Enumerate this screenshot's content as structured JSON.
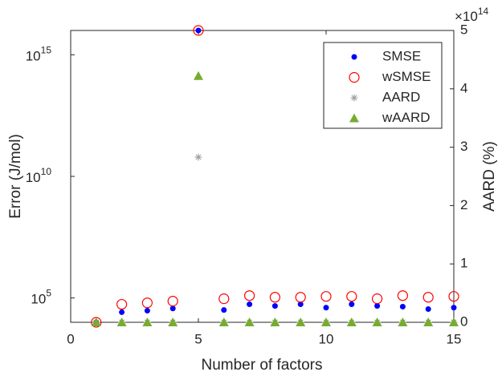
{
  "chart_data": {
    "type": "scatter",
    "xlabel": "Number of factors",
    "ylabel": "Error (J/mol)",
    "y2label": "AARD (%)",
    "y2_multiplier": {
      "label": "×10",
      "exponent": "14"
    },
    "xlim": [
      0,
      15
    ],
    "xticks": [
      0,
      5,
      10,
      15
    ],
    "yscale": "log",
    "ylim": [
      10000,
      10000000000000000
    ],
    "yticks": [
      {
        "value": 100000,
        "label": "10",
        "exponent": "5"
      },
      {
        "value": 10000000000,
        "label": "10",
        "exponent": "10"
      },
      {
        "value": 1000000000000000,
        "label": "10",
        "exponent": "15"
      }
    ],
    "y2lim": [
      0,
      500000000000000
    ],
    "y2ticks": [
      {
        "value": 0,
        "label": "0"
      },
      {
        "value": 100000000000000,
        "label": "1"
      },
      {
        "value": 200000000000000,
        "label": "2"
      },
      {
        "value": 300000000000000,
        "label": "3"
      },
      {
        "value": 400000000000000,
        "label": "4"
      },
      {
        "value": 500000000000000,
        "label": "5"
      }
    ],
    "x": [
      1,
      2,
      3,
      4,
      5,
      6,
      7,
      8,
      9,
      10,
      11,
      12,
      13,
      14,
      15
    ],
    "legend": "upper right",
    "series": [
      {
        "name": "SMSE",
        "color": "#0000ff",
        "marker": "dot",
        "axis": "y",
        "values": [
          10000,
          26000,
          30000,
          37000,
          10000000000000000,
          32000,
          55000,
          47000,
          55000,
          40000,
          55000,
          47000,
          44000,
          35000,
          40000
        ]
      },
      {
        "name": "wSMSE",
        "color": "#ff0000",
        "marker": "circle",
        "axis": "y",
        "values": [
          10000,
          55000,
          63000,
          74000,
          10000000000000000,
          93000,
          125000,
          107000,
          107000,
          116000,
          116000,
          93000,
          125000,
          107000,
          116000
        ]
      },
      {
        "name": "AARD",
        "color": "#999999",
        "marker": "star",
        "axis": "y2",
        "values": [
          0,
          0,
          0,
          0,
          283000000000000,
          0,
          0,
          0,
          0,
          0,
          0,
          0,
          0,
          0,
          0
        ]
      },
      {
        "name": "wAARD",
        "color": "#77ac30",
        "marker": "triangle",
        "axis": "y2",
        "values": [
          0,
          0,
          0,
          0,
          422000000000000,
          0,
          0,
          0,
          0,
          0,
          0,
          0,
          0,
          0,
          0
        ]
      }
    ]
  }
}
